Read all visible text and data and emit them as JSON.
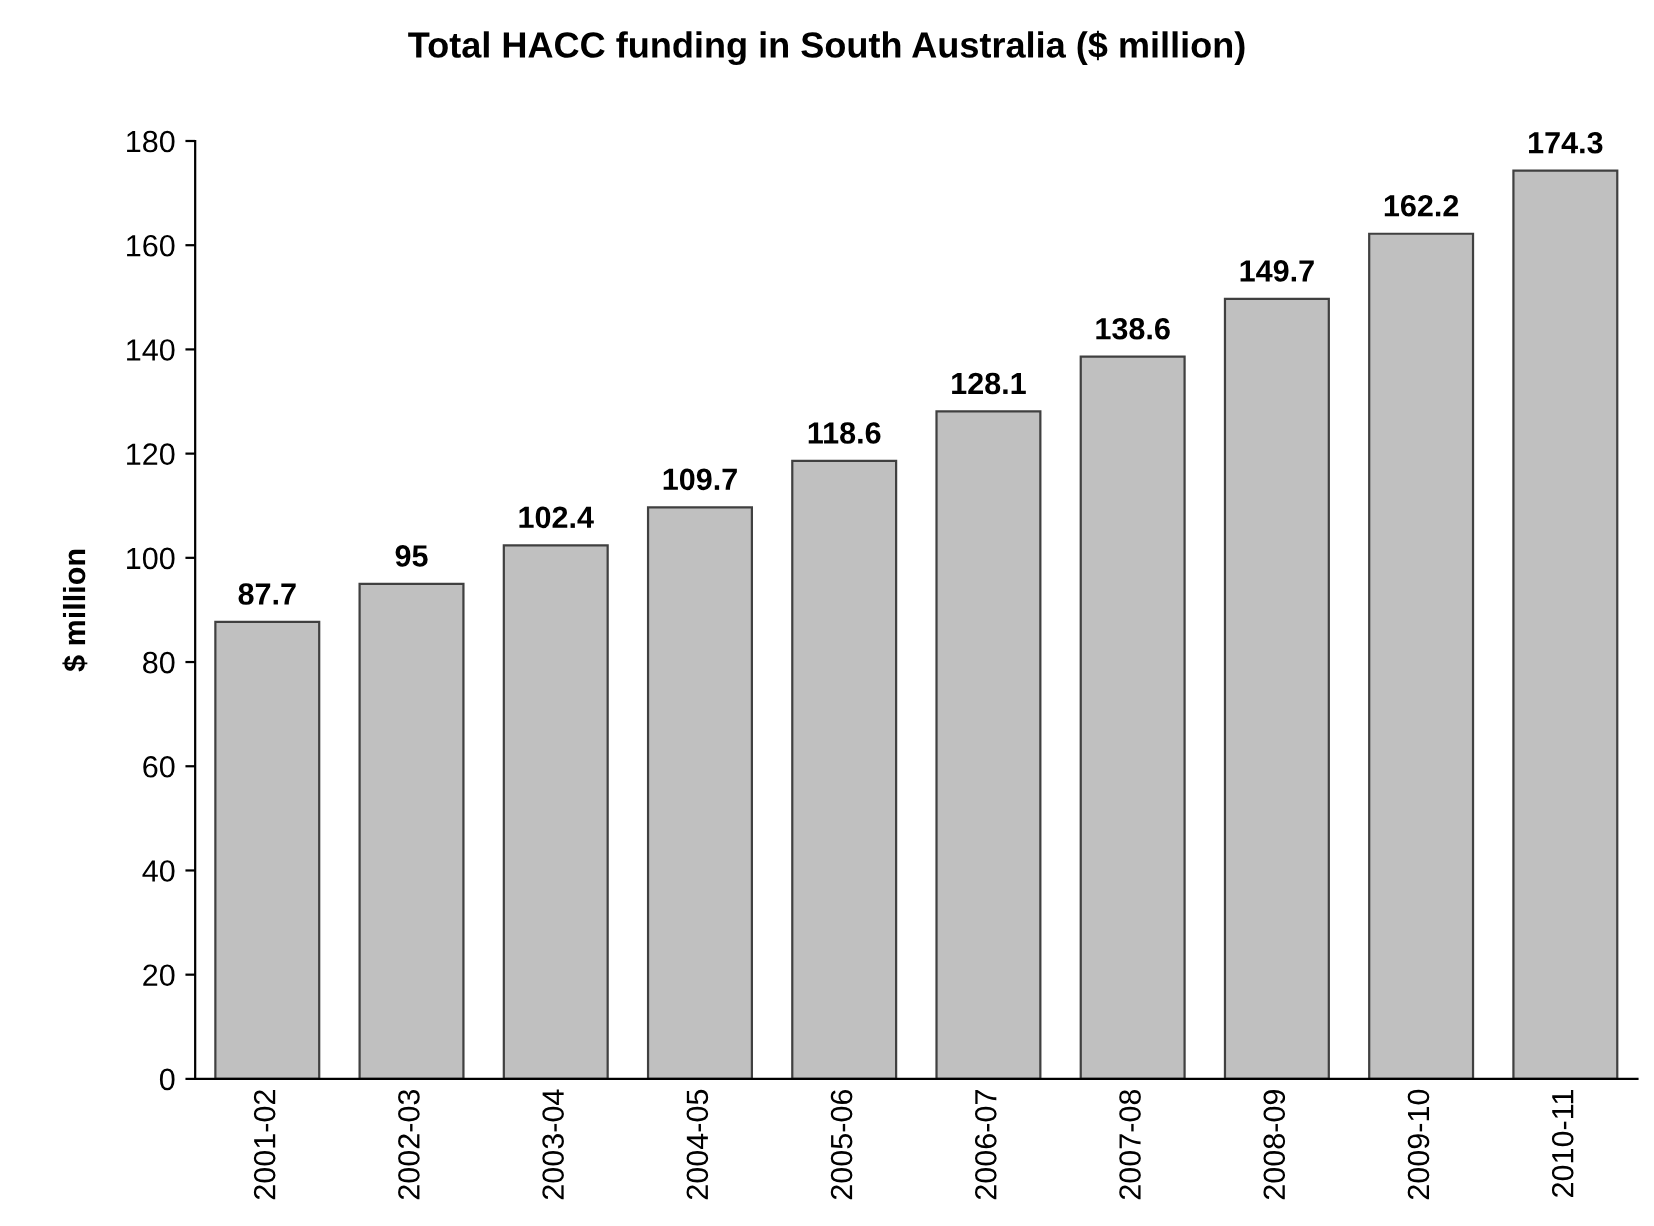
{
  "chart_data": {
    "type": "bar",
    "title": "Total HACC funding in South Australia ($ million)",
    "ylabel": "$ million",
    "categories": [
      "2001-02",
      "2002-03",
      "2003-04",
      "2004-05",
      "2005-06",
      "2006-07",
      "2007-08",
      "2008-09",
      "2009-10",
      "2010-11"
    ],
    "values": [
      87.7,
      95,
      102.4,
      109.7,
      118.6,
      128.1,
      138.6,
      149.7,
      162.2,
      174.3
    ],
    "color": "#c0c0c0",
    "ylim": [
      0,
      180
    ],
    "yticks": [
      0,
      20,
      40,
      60,
      80,
      100,
      120,
      140,
      160,
      180
    ],
    "grid": false,
    "legend": false,
    "data_labels": true
  }
}
